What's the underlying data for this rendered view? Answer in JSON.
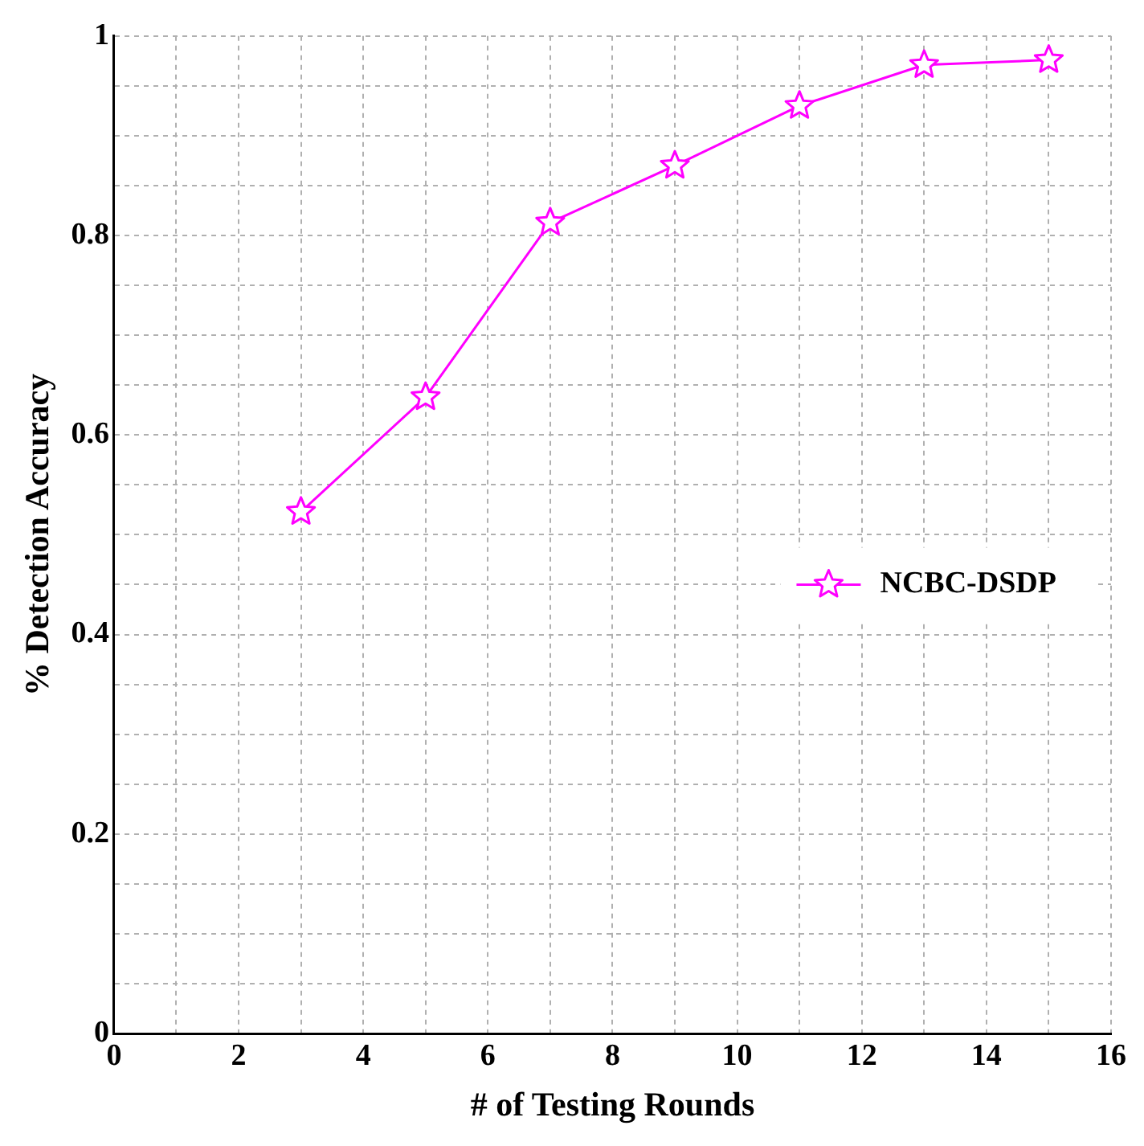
{
  "chart_data": {
    "type": "line",
    "xlabel": "# of Testing Rounds",
    "ylabel": "% Detection Accuracy",
    "x": [
      3,
      5,
      7,
      9,
      11,
      13,
      15
    ],
    "series": [
      {
        "name": "NCBC-DSDP",
        "color": "#ff00ff",
        "values": [
          0.523,
          0.638,
          0.813,
          0.87,
          0.93,
          0.971,
          0.976
        ]
      }
    ],
    "xlim": [
      0,
      16
    ],
    "xticks": [
      0,
      {
        "value": 1,
        "label": null
      },
      2,
      {
        "value": 3,
        "label": null
      },
      4,
      {
        "value": 5,
        "label": null
      },
      6,
      {
        "value": 7,
        "label": null
      },
      8,
      {
        "value": 9,
        "label": null
      },
      10,
      {
        "value": 11,
        "label": null
      },
      12,
      {
        "value": 13,
        "label": null
      },
      14,
      {
        "value": 15,
        "label": null
      },
      16
    ],
    "ylim": [
      0,
      1
    ],
    "yticks": [
      0,
      {
        "value": 0.05,
        "label": null
      },
      {
        "value": 0.1,
        "label": null
      },
      {
        "value": 0.15,
        "label": null
      },
      0.2,
      {
        "value": 0.25,
        "label": null
      },
      {
        "value": 0.3,
        "label": null
      },
      {
        "value": 0.35,
        "label": null
      },
      0.4,
      {
        "value": 0.45,
        "label": null
      },
      {
        "value": 0.5,
        "label": null
      },
      {
        "value": 0.55,
        "label": null
      },
      0.6,
      {
        "value": 0.65,
        "label": null
      },
      {
        "value": 0.7,
        "label": null
      },
      {
        "value": 0.75,
        "label": null
      },
      0.8,
      {
        "value": 0.85,
        "label": null
      },
      {
        "value": 0.9,
        "label": null
      },
      {
        "value": 0.95,
        "label": null
      },
      1
    ],
    "grid": true,
    "legend": "right",
    "marker": "star",
    "line_style": "solid"
  }
}
